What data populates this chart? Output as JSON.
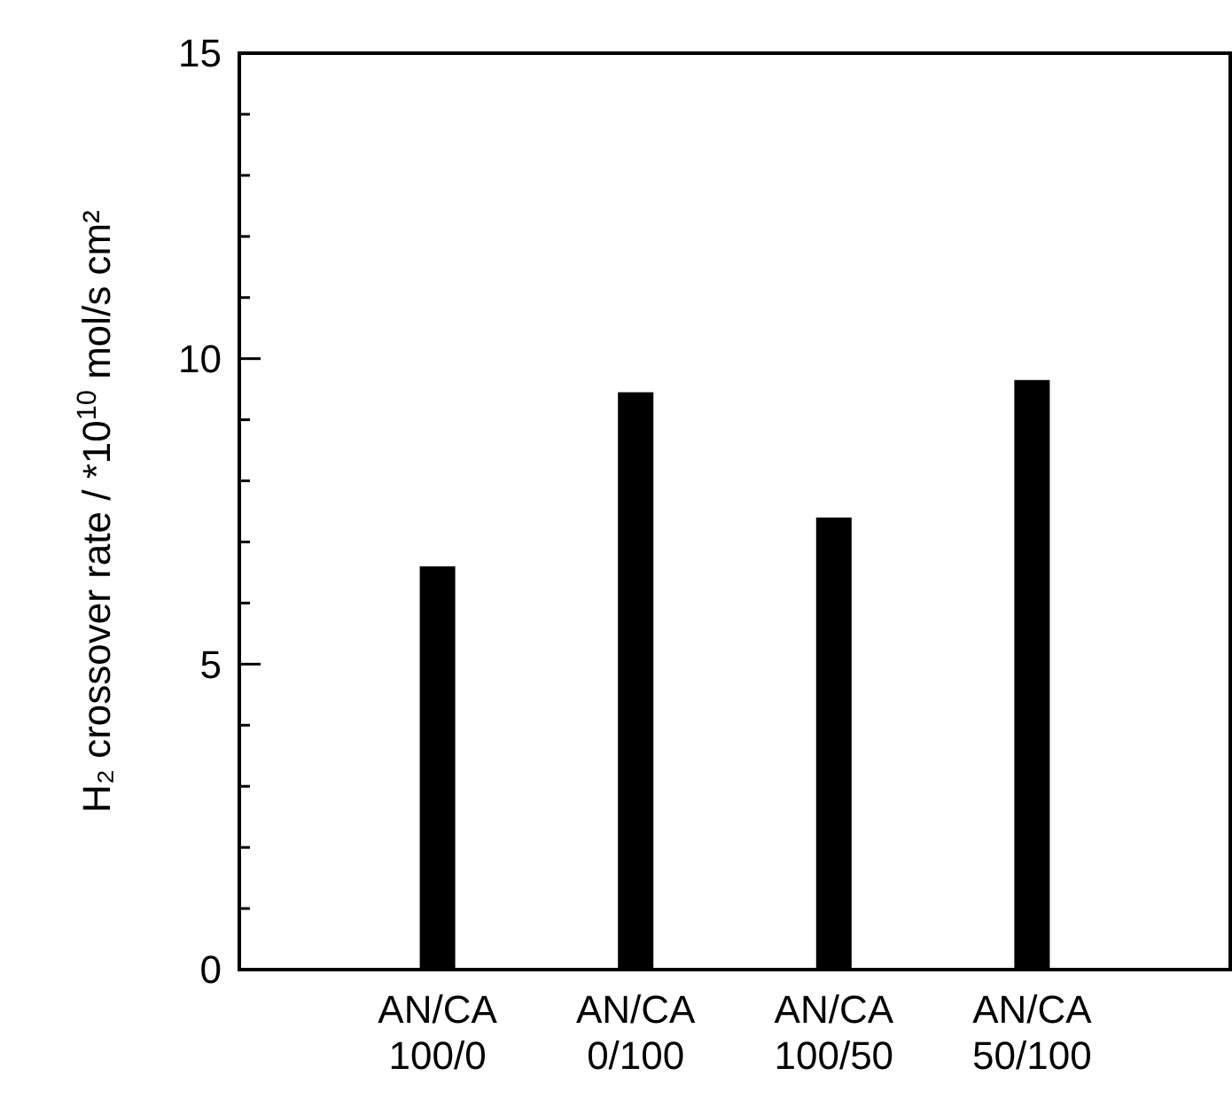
{
  "chart_data": {
    "type": "bar",
    "ylabel": "H₂ crossover rate / *10$^{10}$ mol/s cm²",
    "categories": [
      "AN/CA\n100/0",
      "AN/CA\n0/100",
      "AN/CA\n100/50",
      "AN/CA\n50/100"
    ],
    "values": [
      6.6,
      9.45,
      7.4,
      9.65
    ],
    "color": "#000000",
    "ylim": [
      0,
      15
    ],
    "yticks": [
      0,
      {
        "value": 1,
        "label": null
      },
      {
        "value": 2,
        "label": null
      },
      {
        "value": 3,
        "label": null
      },
      {
        "value": 4,
        "label": null
      },
      5,
      {
        "value": 6,
        "label": null
      },
      {
        "value": 7,
        "label": null
      },
      {
        "value": 8,
        "label": null
      },
      {
        "value": 9,
        "label": null
      },
      10,
      {
        "value": 11,
        "label": null
      },
      {
        "value": 12,
        "label": null
      },
      {
        "value": 13,
        "label": null
      },
      {
        "value": 14,
        "label": null
      },
      15
    ],
    "grid": false
  }
}
